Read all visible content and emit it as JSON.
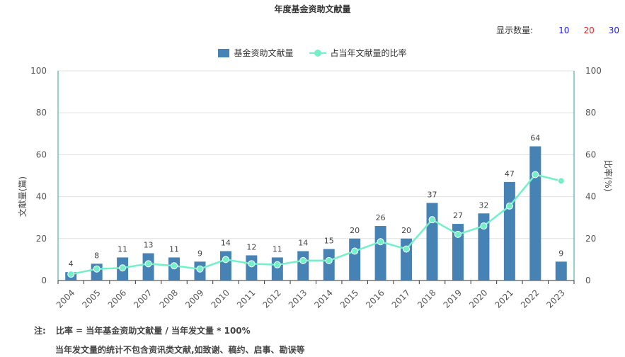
{
  "title": "年度基金资助文献量",
  "display_count": {
    "label": "显示数量:",
    "options": [
      "10",
      "20",
      "30"
    ]
  },
  "legend": {
    "bar_label": "基金资助文献量",
    "line_label": "占当年文献量的比率"
  },
  "colors": {
    "bar": "#4682b4",
    "line": "#73f0c8",
    "axis_right": "#2aa198"
  },
  "notes": {
    "prefix": "注:",
    "line1": "比率 = 当年基金资助文献量 / 当年发文量 * 100%",
    "line2": "当年发文量的统计不包含资讯类文献,如致谢、稿约、启事、勘误等"
  },
  "chart_data": {
    "type": "bar",
    "categories": [
      "2004",
      "2005",
      "2006",
      "2007",
      "2008",
      "2009",
      "2010",
      "2011",
      "2012",
      "2013",
      "2014",
      "2015",
      "2016",
      "2017",
      "2018",
      "2019",
      "2020",
      "2021",
      "2022",
      "2023"
    ],
    "series": [
      {
        "name": "基金资助文献量",
        "type": "bar",
        "axis": "left",
        "values": [
          4,
          8,
          11,
          13,
          11,
          9,
          14,
          12,
          11,
          14,
          15,
          20,
          26,
          20,
          37,
          27,
          32,
          47,
          64,
          9
        ]
      },
      {
        "name": "占当年文献量的比率",
        "type": "line",
        "axis": "right",
        "values": [
          3,
          5.5,
          6,
          8,
          7,
          5.5,
          10,
          8,
          7.5,
          9.5,
          9.5,
          14,
          18.5,
          15,
          29,
          22,
          26,
          35.5,
          50.5,
          47.5
        ]
      }
    ],
    "ylabel_left": "文献量(篇)",
    "ylabel_right": "比率(%)",
    "ylim_left": [
      0,
      100
    ],
    "ylim_right": [
      0,
      100
    ],
    "yticks_left": [
      "0",
      "20",
      "40",
      "60",
      "80",
      "100"
    ],
    "yticks_right": [
      "0",
      "20",
      "40",
      "60",
      "80",
      "100"
    ],
    "grid": true,
    "legend_position": "top-center"
  }
}
